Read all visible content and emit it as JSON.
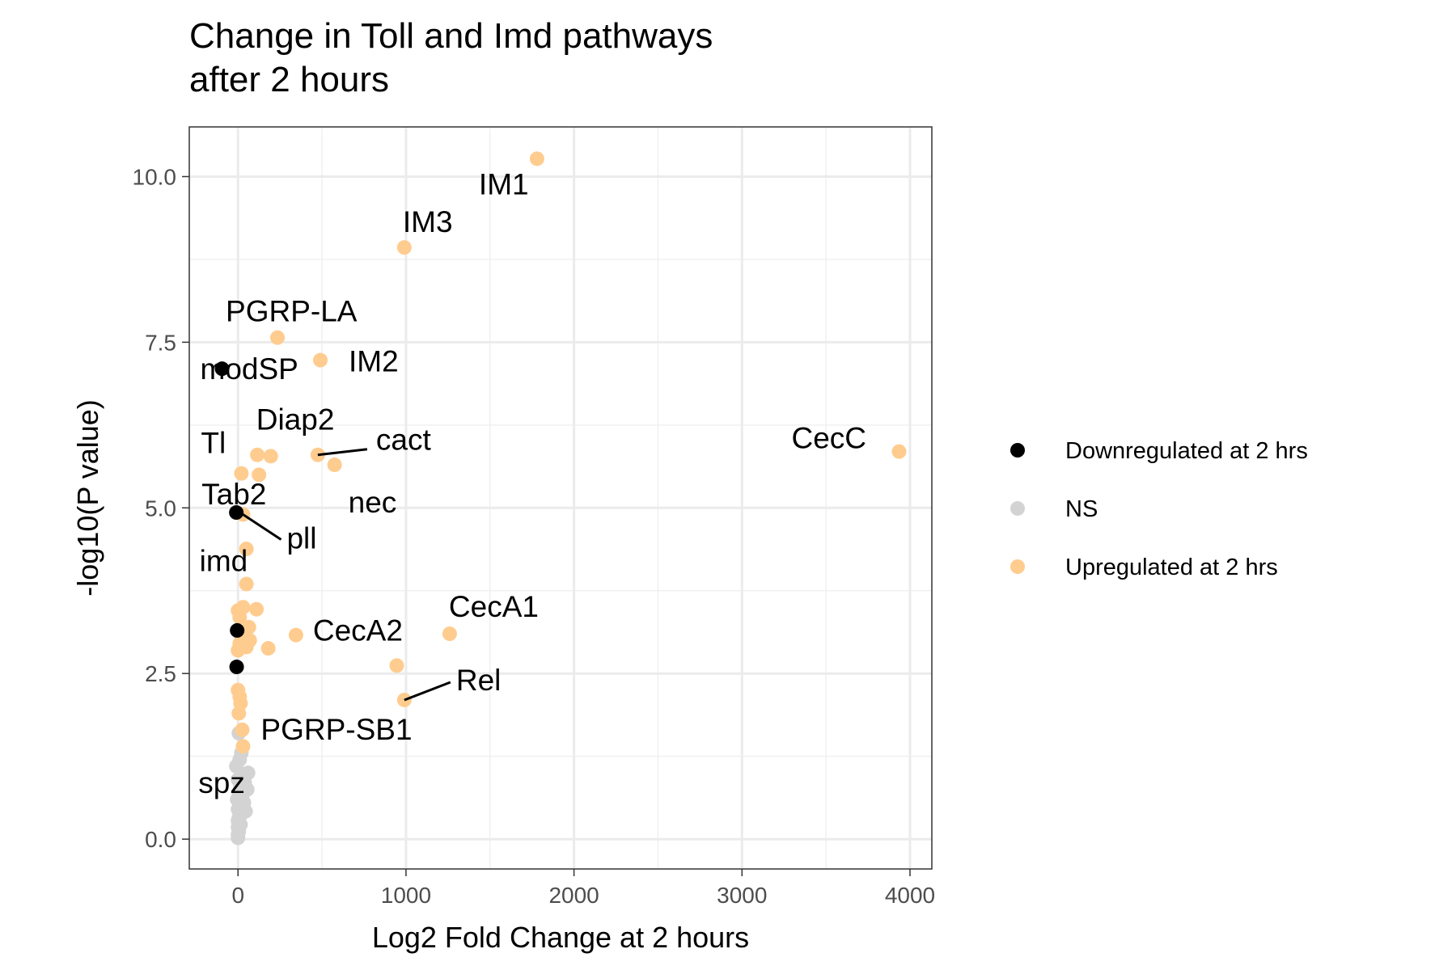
{
  "chart_data": {
    "type": "scatter",
    "title": "Change in Toll and Imd pathways\nafter 2 hours",
    "title_lines": [
      "Change in Toll and Imd pathways",
      "after 2 hours"
    ],
    "xlabel": "Log2 Fold Change at 2 hours",
    "ylabel": "-log10(P value)",
    "xlim": [
      -290,
      4130
    ],
    "ylim": [
      -0.45,
      10.75
    ],
    "x_ticks": [
      0,
      1000,
      2000,
      3000,
      4000
    ],
    "x_tick_labels": [
      "0",
      "1000",
      "2000",
      "3000",
      "4000"
    ],
    "y_ticks": [
      0.0,
      2.5,
      5.0,
      7.5,
      10.0
    ],
    "y_tick_labels": [
      "0.0",
      "2.5",
      "5.0",
      "7.5",
      "10.0"
    ],
    "grid": true,
    "legend_position": "right",
    "legend": [
      {
        "name": "Downregulated at 2 hrs",
        "color": "#000000"
      },
      {
        "name": "NS",
        "color": "#d3d3d3"
      },
      {
        "name": "Upregulated at 2 hrs",
        "color": "#ffcc8f"
      }
    ],
    "series": [
      {
        "name": "Downregulated at 2 hrs",
        "color": "#000000",
        "points": [
          {
            "x": -95,
            "y": 7.1
          },
          {
            "x": -10,
            "y": 4.93
          },
          {
            "x": -5,
            "y": 3.15
          },
          {
            "x": -8,
            "y": 2.6
          }
        ]
      },
      {
        "name": "NS",
        "color": "#d3d3d3",
        "points": [
          {
            "x": 5,
            "y": 1.6
          },
          {
            "x": 20,
            "y": 1.3
          },
          {
            "x": 10,
            "y": 1.2
          },
          {
            "x": -10,
            "y": 1.1
          },
          {
            "x": 60,
            "y": 1.0
          },
          {
            "x": 30,
            "y": 0.95
          },
          {
            "x": 0,
            "y": 0.9
          },
          {
            "x": 40,
            "y": 0.85
          },
          {
            "x": 15,
            "y": 0.8
          },
          {
            "x": 55,
            "y": 0.75
          },
          {
            "x": 5,
            "y": 0.7
          },
          {
            "x": 25,
            "y": 0.65
          },
          {
            "x": -5,
            "y": 0.6
          },
          {
            "x": 35,
            "y": 0.55
          },
          {
            "x": 10,
            "y": 0.5
          },
          {
            "x": 0,
            "y": 0.45
          },
          {
            "x": 45,
            "y": 0.42
          },
          {
            "x": 20,
            "y": 0.38
          },
          {
            "x": 5,
            "y": 0.32
          },
          {
            "x": 0,
            "y": 0.28
          },
          {
            "x": 15,
            "y": 0.22
          },
          {
            "x": 0,
            "y": 0.18
          },
          {
            "x": 5,
            "y": 0.12
          },
          {
            "x": 0,
            "y": 0.07
          },
          {
            "x": 0,
            "y": 0.02
          }
        ]
      },
      {
        "name": "Upregulated at 2 hrs",
        "color": "#ffcc8f",
        "points": [
          {
            "x": 1780,
            "y": 10.27
          },
          {
            "x": 990,
            "y": 8.93
          },
          {
            "x": 235,
            "y": 7.57
          },
          {
            "x": 490,
            "y": 7.23
          },
          {
            "x": 3935,
            "y": 5.85
          },
          {
            "x": 475,
            "y": 5.8
          },
          {
            "x": 115,
            "y": 5.8
          },
          {
            "x": 195,
            "y": 5.78
          },
          {
            "x": 575,
            "y": 5.65
          },
          {
            "x": 20,
            "y": 5.52
          },
          {
            "x": 125,
            "y": 5.5
          },
          {
            "x": 30,
            "y": 4.9
          },
          {
            "x": 50,
            "y": 4.38
          },
          {
            "x": 50,
            "y": 3.85
          },
          {
            "x": 110,
            "y": 3.47
          },
          {
            "x": 0,
            "y": 3.45
          },
          {
            "x": 30,
            "y": 3.5
          },
          {
            "x": 10,
            "y": 3.35
          },
          {
            "x": 65,
            "y": 3.2
          },
          {
            "x": 1260,
            "y": 3.1
          },
          {
            "x": 345,
            "y": 3.08
          },
          {
            "x": 20,
            "y": 3.05
          },
          {
            "x": 70,
            "y": 3.0
          },
          {
            "x": 10,
            "y": 2.95
          },
          {
            "x": 50,
            "y": 2.9
          },
          {
            "x": 180,
            "y": 2.88
          },
          {
            "x": 0,
            "y": 2.85
          },
          {
            "x": 945,
            "y": 2.62
          },
          {
            "x": 990,
            "y": 2.1
          },
          {
            "x": 0,
            "y": 2.25
          },
          {
            "x": 10,
            "y": 2.15
          },
          {
            "x": 15,
            "y": 2.05
          },
          {
            "x": 5,
            "y": 1.9
          },
          {
            "x": 25,
            "y": 1.65
          },
          {
            "x": 30,
            "y": 1.4
          }
        ]
      }
    ],
    "annotations": [
      {
        "text": "IM1",
        "x": 1780,
        "y": 10.27
      },
      {
        "text": "IM3",
        "x": 990,
        "y": 8.93
      },
      {
        "text": "PGRP-LA",
        "x": 235,
        "y": 7.57
      },
      {
        "text": "IM2",
        "x": 490,
        "y": 7.23
      },
      {
        "text": "modSP",
        "x": -95,
        "y": 7.1
      },
      {
        "text": "Diap2",
        "x": 195,
        "y": 5.78
      },
      {
        "text": "CecC",
        "x": 3935,
        "y": 5.85
      },
      {
        "text": "Tl",
        "x": 20,
        "y": 5.52
      },
      {
        "text": "cact",
        "x": 475,
        "y": 5.8
      },
      {
        "text": "nec",
        "x": 575,
        "y": 5.65
      },
      {
        "text": "Tab2",
        "x": -10,
        "y": 4.93
      },
      {
        "text": "pll",
        "x": 30,
        "y": 4.9
      },
      {
        "text": "imd",
        "x": 50,
        "y": 3.85
      },
      {
        "text": "CecA1",
        "x": 1260,
        "y": 3.1
      },
      {
        "text": "CecA2",
        "x": 345,
        "y": 3.08
      },
      {
        "text": "Rel",
        "x": 990,
        "y": 2.1
      },
      {
        "text": "PGRP-SB1",
        "x": 25,
        "y": 1.65
      },
      {
        "text": "spz",
        "x": 5,
        "y": 1.0
      }
    ]
  }
}
